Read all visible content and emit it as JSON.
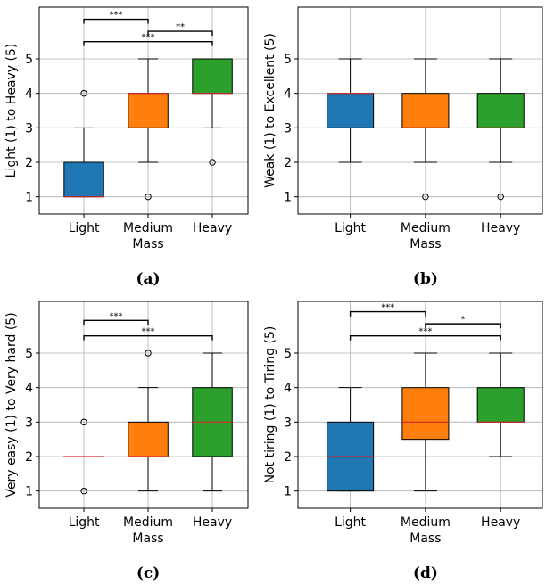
{
  "chart_data": [
    {
      "type": "box",
      "panel_label": "(a)",
      "xlabel": "Mass",
      "ylabel": "Light (1) to Heavy (5)",
      "categories": [
        "Light",
        "Medium",
        "Heavy"
      ],
      "ylim": [
        0.5,
        6.5
      ],
      "yticks": [
        1,
        2,
        3,
        4,
        5
      ],
      "grid": true,
      "boxes": [
        {
          "category": "Light",
          "whislo": 1,
          "q1": 1,
          "med": 1,
          "q3": 2,
          "whishi": 3,
          "fliers": [
            4
          ],
          "color": "#1f77b4"
        },
        {
          "category": "Medium",
          "whislo": 2,
          "q1": 3,
          "med": 4,
          "q3": 4,
          "whishi": 5,
          "fliers": [
            1
          ],
          "color": "#ff7f0e"
        },
        {
          "category": "Heavy",
          "whislo": 3,
          "q1": 4,
          "med": 4,
          "q3": 5,
          "whishi": 5,
          "fliers": [
            2
          ],
          "color": "#2ca02c"
        }
      ],
      "significance": [
        {
          "from": "Light",
          "to": "Medium",
          "label": "***",
          "level": 6.15
        },
        {
          "from": "Medium",
          "to": "Heavy",
          "label": "**",
          "level": 5.8
        },
        {
          "from": "Light",
          "to": "Heavy",
          "label": "***",
          "level": 5.5
        }
      ]
    },
    {
      "type": "box",
      "panel_label": "(b)",
      "xlabel": "Mass",
      "ylabel": "Weak (1) to Excellent (5)",
      "categories": [
        "Light",
        "Medium",
        "Heavy"
      ],
      "ylim": [
        0.5,
        6.5
      ],
      "yticks": [
        1,
        2,
        3,
        4,
        5
      ],
      "grid": true,
      "boxes": [
        {
          "category": "Light",
          "whislo": 2,
          "q1": 3,
          "med": 4,
          "q3": 4,
          "whishi": 5,
          "fliers": [],
          "color": "#1f77b4"
        },
        {
          "category": "Medium",
          "whislo": 2,
          "q1": 3,
          "med": 3,
          "q3": 4,
          "whishi": 5,
          "fliers": [
            1
          ],
          "color": "#ff7f0e"
        },
        {
          "category": "Heavy",
          "whislo": 2,
          "q1": 3,
          "med": 3,
          "q3": 4,
          "whishi": 5,
          "fliers": [
            1
          ],
          "color": "#2ca02c"
        }
      ],
      "significance": []
    },
    {
      "type": "box",
      "panel_label": "(c)",
      "xlabel": "Mass",
      "ylabel": "Very easy (1) to Very hard (5)",
      "categories": [
        "Light",
        "Medium",
        "Heavy"
      ],
      "ylim": [
        0.5,
        6.5
      ],
      "yticks": [
        1,
        2,
        3,
        4,
        5
      ],
      "grid": true,
      "boxes": [
        {
          "category": "Light",
          "whislo": 2,
          "q1": 2,
          "med": 2,
          "q3": 2,
          "whishi": 2,
          "fliers": [
            1,
            3
          ],
          "color": "#1f77b4"
        },
        {
          "category": "Medium",
          "whislo": 1,
          "q1": 2,
          "med": 2,
          "q3": 3,
          "whishi": 4,
          "fliers": [
            5
          ],
          "color": "#ff7f0e"
        },
        {
          "category": "Heavy",
          "whislo": 1,
          "q1": 2,
          "med": 3,
          "q3": 4,
          "whishi": 5,
          "fliers": [],
          "color": "#2ca02c"
        }
      ],
      "significance": [
        {
          "from": "Light",
          "to": "Medium",
          "label": "***",
          "level": 5.95
        },
        {
          "from": "Light",
          "to": "Heavy",
          "label": "***",
          "level": 5.5
        }
      ]
    },
    {
      "type": "box",
      "panel_label": "(d)",
      "xlabel": "Mass",
      "ylabel": "Not tiring (1) to Tiring (5)",
      "categories": [
        "Light",
        "Medium",
        "Heavy"
      ],
      "ylim": [
        0.5,
        6.5
      ],
      "yticks": [
        1,
        2,
        3,
        4,
        5
      ],
      "grid": true,
      "boxes": [
        {
          "category": "Light",
          "whislo": 1,
          "q1": 1,
          "med": 2,
          "q3": 3,
          "whishi": 4,
          "fliers": [],
          "color": "#1f77b4"
        },
        {
          "category": "Medium",
          "whislo": 1,
          "q1": 2.5,
          "med": 3,
          "q3": 4,
          "whishi": 5,
          "fliers": [],
          "color": "#ff7f0e"
        },
        {
          "category": "Heavy",
          "whislo": 2,
          "q1": 3,
          "med": 3,
          "q3": 4,
          "whishi": 5,
          "fliers": [],
          "color": "#2ca02c"
        }
      ],
      "significance": [
        {
          "from": "Light",
          "to": "Medium",
          "label": "***",
          "level": 6.2
        },
        {
          "from": "Medium",
          "to": "Heavy",
          "label": "*",
          "level": 5.85
        },
        {
          "from": "Light",
          "to": "Heavy",
          "label": "***",
          "level": 5.5
        }
      ]
    }
  ]
}
